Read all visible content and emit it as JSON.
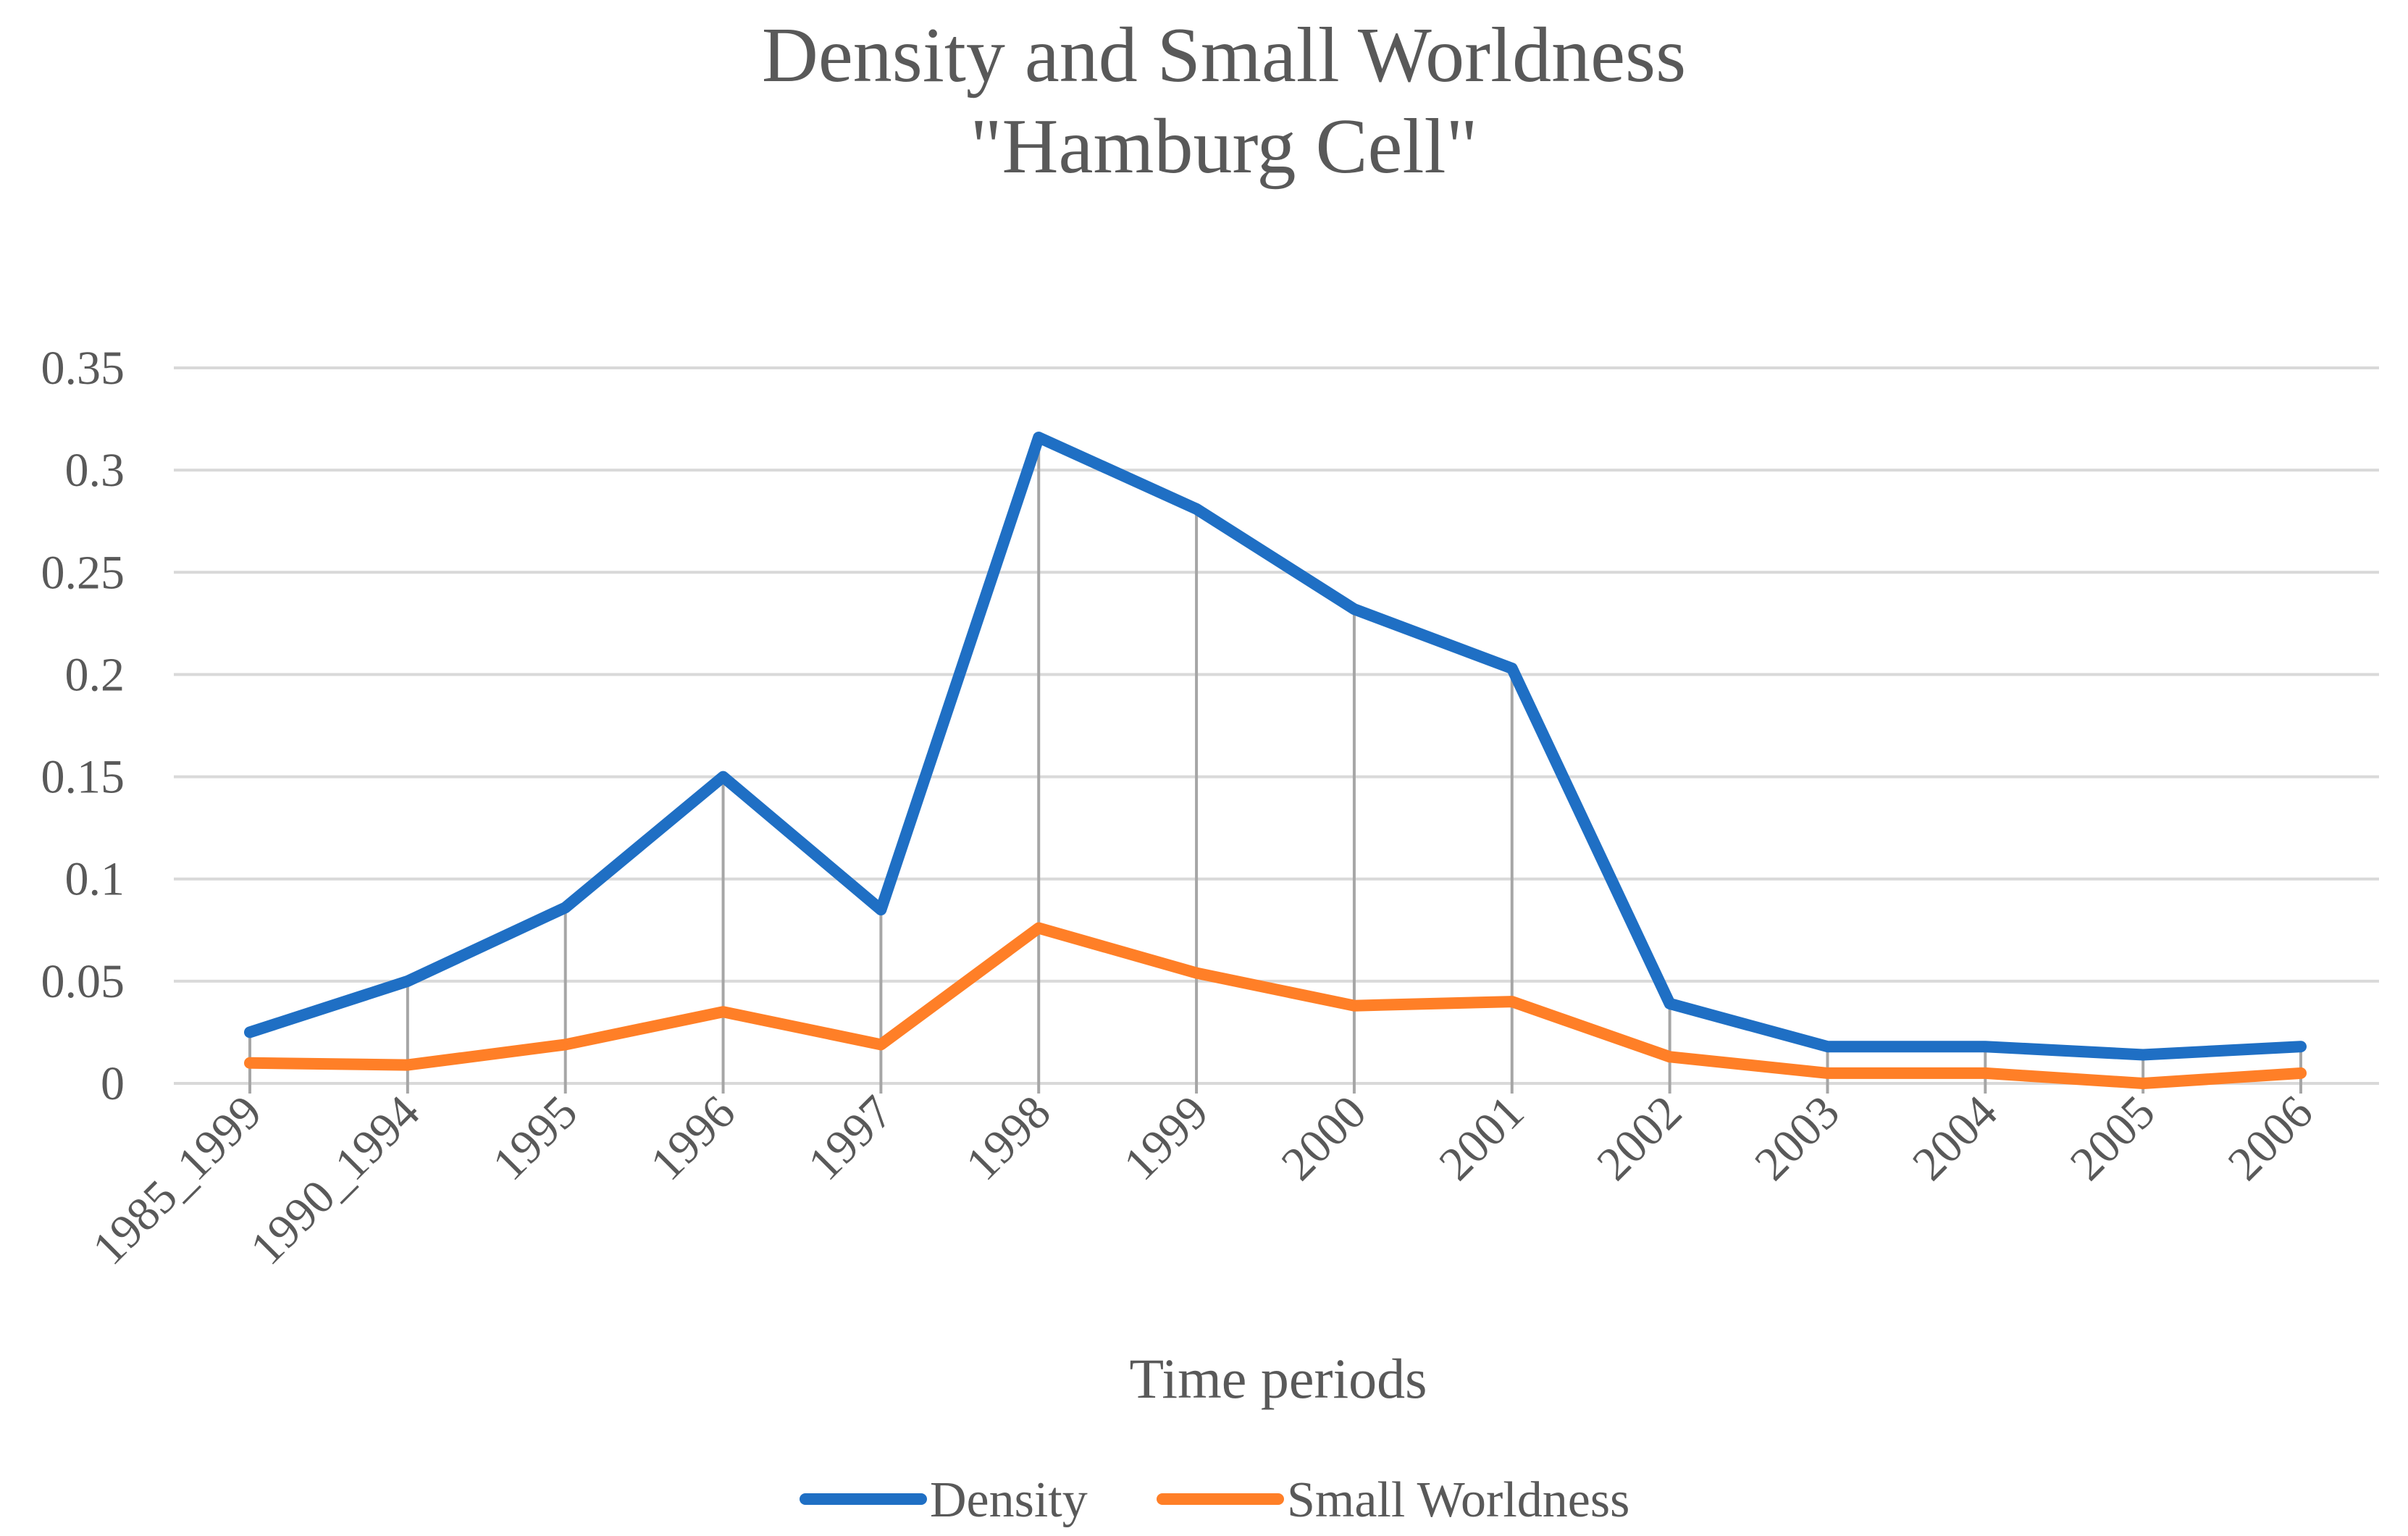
{
  "chart_data": {
    "type": "line",
    "title_lines": [
      "Density and Small Worldness",
      "\"Hamburg Cell\""
    ],
    "xlabel": "Time periods",
    "ylabel": "",
    "categories": [
      "1985_1999",
      "1990_1994",
      "1995",
      "1996",
      "1997",
      "1998",
      "1999",
      "2000",
      "2001",
      "2002",
      "2003",
      "2004",
      "2005",
      "2006"
    ],
    "y_ticks": [
      "0",
      "0.05",
      "0.1",
      "0.15",
      "0.2",
      "0.25",
      "0.3",
      "0.35"
    ],
    "ylim": [
      0,
      0.35
    ],
    "grid": true,
    "drop_lines": true,
    "legend_position": "bottom",
    "series": [
      {
        "name": "Density",
        "color": "#1F6FC4",
        "values": [
          0.025,
          0.05,
          0.086,
          0.15,
          0.085,
          0.316,
          0.281,
          0.232,
          0.203,
          0.039,
          0.018,
          0.018,
          0.014,
          0.018
        ]
      },
      {
        "name": "Small Worldness",
        "color": "#FF7F27",
        "values": [
          0.01,
          0.009,
          0.019,
          0.035,
          0.019,
          0.076,
          0.054,
          0.038,
          0.04,
          0.013,
          0.005,
          0.005,
          0.0,
          0.005
        ]
      }
    ],
    "gridline_color": "#D9D9D9",
    "dropline_color": "#A6A6A6"
  }
}
